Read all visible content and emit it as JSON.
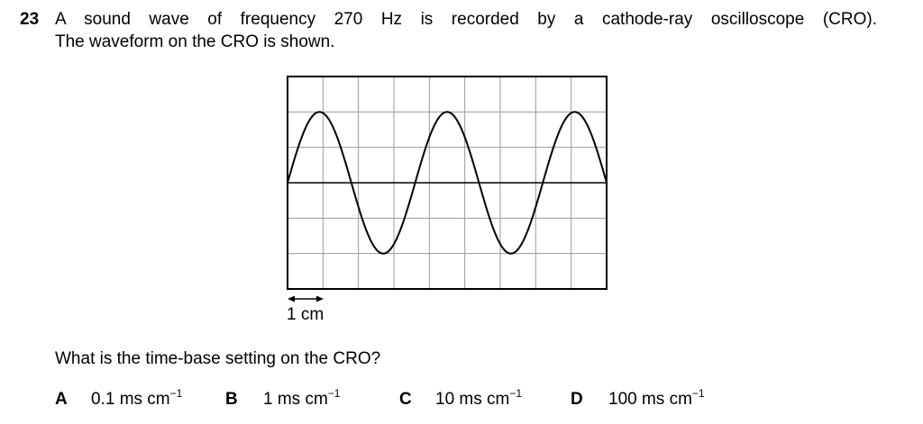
{
  "question": {
    "number": "23",
    "stem_line1": "A sound wave of frequency 270 Hz is recorded by a cathode-ray oscilloscope (CRO).",
    "stem_line2": "The waveform on the CRO is shown.",
    "ask": "What is the time-base setting on the CRO?"
  },
  "figure": {
    "scale_label": "1 cm",
    "grid_columns": 9,
    "grid_rows": 6,
    "wave_cycles": 2.5
  },
  "options": [
    {
      "letter": "A",
      "value": "0.1 ms cm",
      "exponent": "−1"
    },
    {
      "letter": "B",
      "value": "1 ms cm",
      "exponent": "−1"
    },
    {
      "letter": "C",
      "value": "10 ms cm",
      "exponent": "−1"
    },
    {
      "letter": "D",
      "value": "100 ms cm",
      "exponent": "−1"
    }
  ]
}
